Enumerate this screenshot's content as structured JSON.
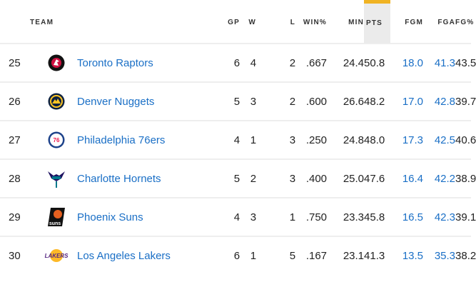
{
  "columns": {
    "rank": "",
    "team": "TEAM",
    "gp": "GP",
    "w": "W",
    "l": "L",
    "winpct": "WIN%",
    "min": "MIN",
    "pts": "PTS",
    "fgm": "FGM",
    "fga": "FGA",
    "fgpct": "FG%"
  },
  "sorted_column": "PTS",
  "colors": {
    "link": "#1a6fc6",
    "sort_indicator": "#f0b323",
    "sorted_bg": "#ebebeb"
  },
  "rows": [
    {
      "rank": "25",
      "team": "Toronto Raptors",
      "logo": "raptors-logo",
      "gp": "6",
      "w": "4",
      "l": "2",
      "winpct": ".667",
      "min": "24.4",
      "pts": "50.8",
      "fgm": "18.0",
      "fga": "41.3",
      "fgpct": "43.5"
    },
    {
      "rank": "26",
      "team": "Denver Nuggets",
      "logo": "nuggets-logo",
      "gp": "5",
      "w": "3",
      "l": "2",
      "winpct": ".600",
      "min": "26.6",
      "pts": "48.2",
      "fgm": "17.0",
      "fga": "42.8",
      "fgpct": "39.7"
    },
    {
      "rank": "27",
      "team": "Philadelphia 76ers",
      "logo": "76ers-logo",
      "gp": "4",
      "w": "1",
      "l": "3",
      "winpct": ".250",
      "min": "24.8",
      "pts": "48.0",
      "fgm": "17.3",
      "fga": "42.5",
      "fgpct": "40.6"
    },
    {
      "rank": "28",
      "team": "Charlotte Hornets",
      "logo": "hornets-logo",
      "gp": "5",
      "w": "2",
      "l": "3",
      "winpct": ".400",
      "min": "25.0",
      "pts": "47.6",
      "fgm": "16.4",
      "fga": "42.2",
      "fgpct": "38.9"
    },
    {
      "rank": "29",
      "team": "Phoenix Suns",
      "logo": "suns-logo",
      "gp": "4",
      "w": "3",
      "l": "1",
      "winpct": ".750",
      "min": "23.3",
      "pts": "45.8",
      "fgm": "16.5",
      "fga": "42.3",
      "fgpct": "39.1"
    },
    {
      "rank": "30",
      "team": "Los Angeles Lakers",
      "logo": "lakers-logo",
      "gp": "6",
      "w": "1",
      "l": "5",
      "winpct": ".167",
      "min": "23.1",
      "pts": "41.3",
      "fgm": "13.5",
      "fga": "35.3",
      "fgpct": "38.2"
    }
  ]
}
